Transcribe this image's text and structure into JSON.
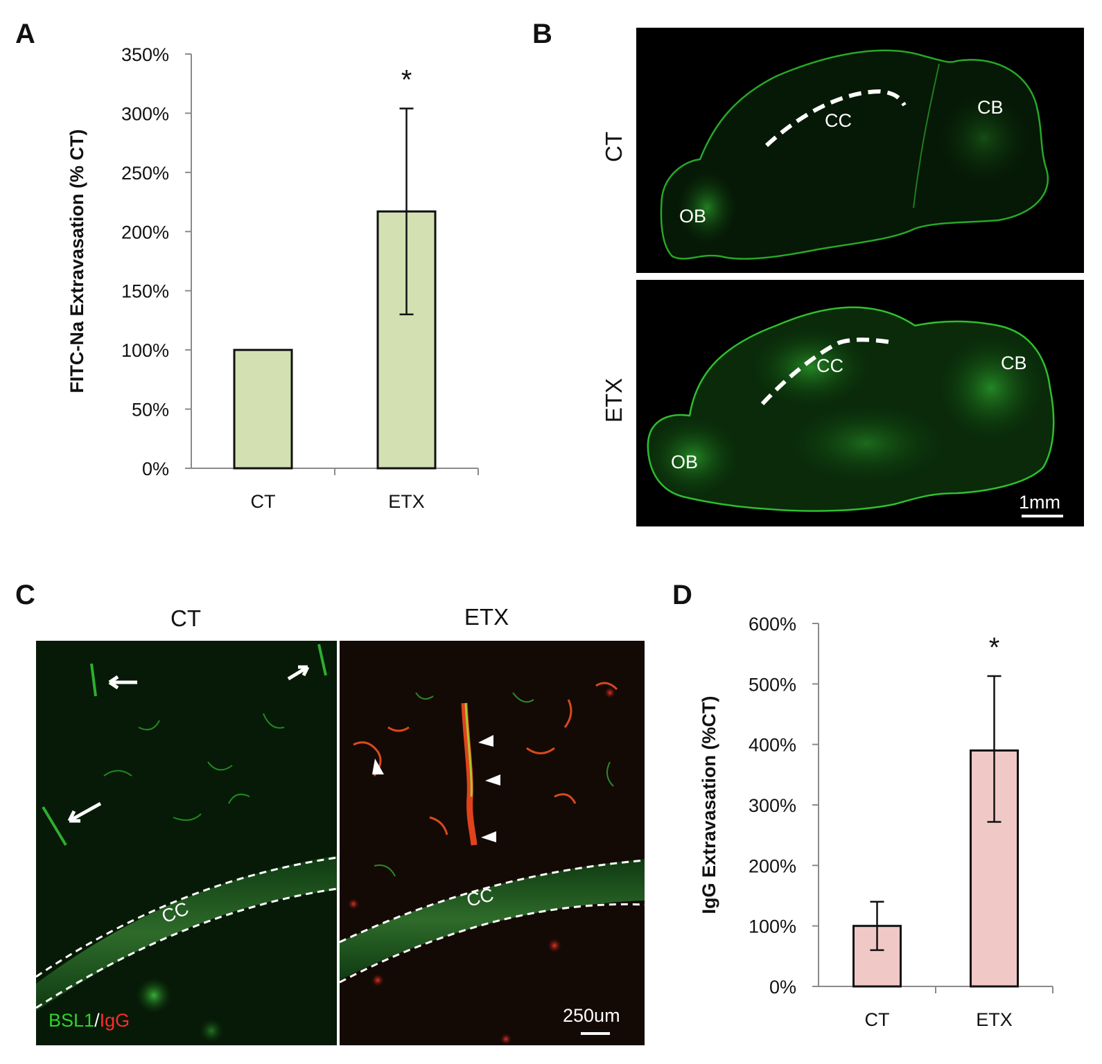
{
  "panels": {
    "a": {
      "letter": "A"
    },
    "b": {
      "letter": "B"
    },
    "c": {
      "letter": "C"
    },
    "d": {
      "letter": "D"
    }
  },
  "panel_b": {
    "rows": [
      "CT",
      "ETX"
    ],
    "region_labels": [
      "CC",
      "CB",
      "OB"
    ],
    "scale_bar": "1mm"
  },
  "panel_c": {
    "columns": [
      "CT",
      "ETX"
    ],
    "region_label": "CC",
    "stain_green": "BSL1",
    "stain_sep": "/",
    "stain_red": "IgG",
    "scale_bar": "250um"
  },
  "chart_data": [
    {
      "type": "bar",
      "panel": "A",
      "categories": [
        "CT",
        "ETX"
      ],
      "values": [
        100,
        217
      ],
      "error_upper": [
        0,
        87
      ],
      "error_lower": [
        0,
        87
      ],
      "unit": "%",
      "ylabel": "FITC-Na Extravasation (% CT)",
      "ylim": [
        0,
        350
      ],
      "yticks": [
        "0%",
        "50%",
        "100%",
        "150%",
        "200%",
        "250%",
        "300%",
        "350%"
      ],
      "annotations": [
        "",
        "*"
      ],
      "bar_color": "#d3e0b2",
      "grid": false
    },
    {
      "type": "bar",
      "panel": "D",
      "categories": [
        "CT",
        "ETX"
      ],
      "values": [
        100,
        390
      ],
      "error_upper": [
        40,
        123
      ],
      "error_lower": [
        40,
        118
      ],
      "unit": "%",
      "ylabel": "IgG Extravasation (%CT)",
      "ylim": [
        0,
        600
      ],
      "yticks": [
        "0%",
        "100%",
        "200%",
        "300%",
        "400%",
        "500%",
        "600%"
      ],
      "annotations": [
        "",
        "*"
      ],
      "bar_color": "#f0c9c6",
      "grid": false
    }
  ],
  "colors": {
    "fluor_green": "#1fb51f",
    "fluor_red": "#e02020",
    "image_bg": "#000000"
  }
}
